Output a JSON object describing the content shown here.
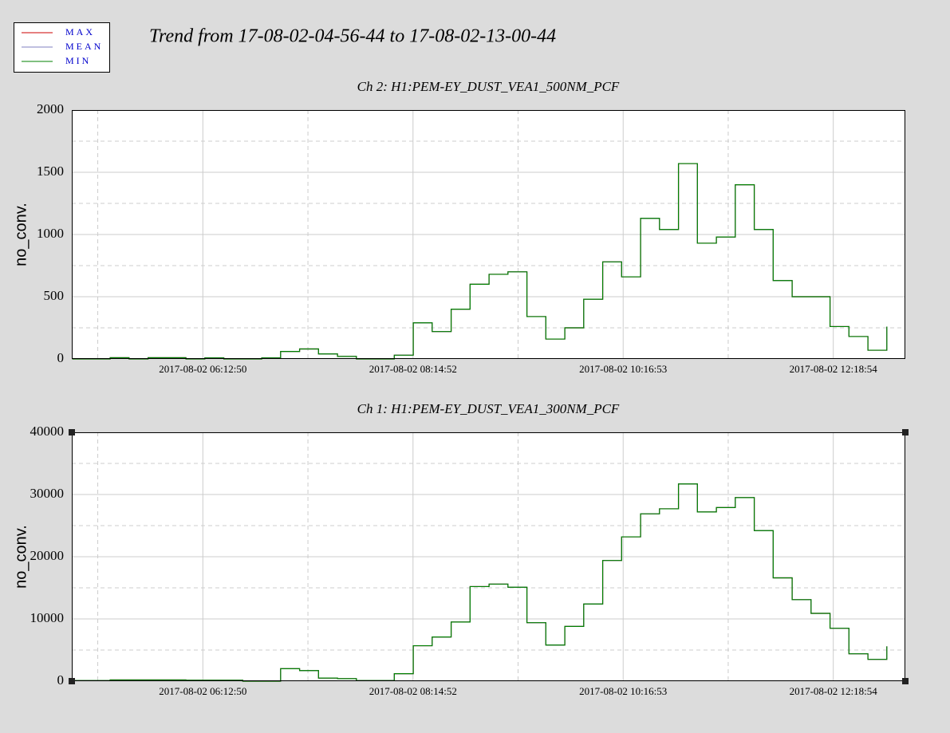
{
  "title": "Trend from 17-08-02-04-56-44 to 17-08-02-13-00-44",
  "chart_data": [
    {
      "type": "line",
      "step": true,
      "title": "Ch 2: H1:PEM-EY_DUST_VEA1_500NM_PCF",
      "y_label": "no_conv.",
      "xlim": [
        "2017-08-02 04:56:44",
        "2017-08-02 13:00:44"
      ],
      "xticks": [
        "2017-08-02 06:12:50",
        "2017-08-02 08:14:52",
        "2017-08-02 10:16:53",
        "2017-08-02 12:18:54"
      ],
      "minor_xticks": [
        "2017-08-02 05:11:49",
        "2017-08-02 07:13:51",
        "2017-08-02 09:15:52",
        "2017-08-02 11:17:53"
      ],
      "ylim": [
        0,
        2000
      ],
      "yticks": [
        0,
        500,
        1000,
        1500,
        2000
      ],
      "minor_yticks": [
        250,
        750,
        1250,
        1750
      ],
      "grid": true,
      "x": [
        "2017-08-02 04:57:00",
        "2017-08-02 05:08:00",
        "2017-08-02 05:19:00",
        "2017-08-02 05:30:00",
        "2017-08-02 05:41:00",
        "2017-08-02 05:52:00",
        "2017-08-02 06:03:00",
        "2017-08-02 06:14:00",
        "2017-08-02 06:25:00",
        "2017-08-02 06:36:00",
        "2017-08-02 06:47:00",
        "2017-08-02 06:58:00",
        "2017-08-02 07:09:00",
        "2017-08-02 07:20:00",
        "2017-08-02 07:31:00",
        "2017-08-02 07:42:00",
        "2017-08-02 07:53:00",
        "2017-08-02 08:04:00",
        "2017-08-02 08:15:00",
        "2017-08-02 08:26:00",
        "2017-08-02 08:37:00",
        "2017-08-02 08:48:00",
        "2017-08-02 08:59:00",
        "2017-08-02 09:10:00",
        "2017-08-02 09:21:00",
        "2017-08-02 09:32:00",
        "2017-08-02 09:43:00",
        "2017-08-02 09:54:00",
        "2017-08-02 10:05:00",
        "2017-08-02 10:16:00",
        "2017-08-02 10:27:00",
        "2017-08-02 10:38:00",
        "2017-08-02 10:49:00",
        "2017-08-02 11:00:00",
        "2017-08-02 11:11:00",
        "2017-08-02 11:22:00",
        "2017-08-02 11:33:00",
        "2017-08-02 11:44:00",
        "2017-08-02 11:55:00",
        "2017-08-02 12:06:00",
        "2017-08-02 12:17:00",
        "2017-08-02 12:28:00",
        "2017-08-02 12:39:00",
        "2017-08-02 12:50:00"
      ],
      "series": [
        {
          "name": "MAX",
          "color": "#cc0000",
          "values": [
            0,
            0,
            10,
            0,
            10,
            10,
            0,
            8,
            0,
            0,
            8,
            60,
            80,
            40,
            20,
            0,
            0,
            30,
            290,
            220,
            400,
            600,
            680,
            700,
            340,
            160,
            250,
            480,
            780,
            660,
            1130,
            1040,
            1570,
            930,
            980,
            1400,
            1040,
            630,
            500,
            500,
            260,
            180,
            70,
            260
          ]
        },
        {
          "name": "MEAN",
          "color": "#8080c0",
          "values": [
            0,
            0,
            10,
            0,
            10,
            10,
            0,
            8,
            0,
            0,
            8,
            60,
            80,
            40,
            20,
            0,
            0,
            30,
            290,
            220,
            400,
            600,
            680,
            700,
            340,
            160,
            250,
            480,
            780,
            660,
            1130,
            1040,
            1570,
            930,
            980,
            1400,
            1040,
            630,
            500,
            500,
            260,
            180,
            70,
            260
          ]
        },
        {
          "name": "MIN",
          "color": "#008000",
          "values": [
            0,
            0,
            10,
            0,
            10,
            10,
            0,
            8,
            0,
            0,
            8,
            60,
            80,
            40,
            20,
            0,
            0,
            30,
            290,
            220,
            400,
            600,
            680,
            700,
            340,
            160,
            250,
            480,
            780,
            660,
            1130,
            1040,
            1570,
            930,
            980,
            1400,
            1040,
            630,
            500,
            500,
            260,
            180,
            70,
            260
          ]
        }
      ]
    },
    {
      "type": "line",
      "step": true,
      "title": "Ch 1: H1:PEM-EY_DUST_VEA1_300NM_PCF",
      "y_label": "no_conv.",
      "xlim": [
        "2017-08-02 04:56:44",
        "2017-08-02 13:00:44"
      ],
      "xticks": [
        "2017-08-02 06:12:50",
        "2017-08-02 08:14:52",
        "2017-08-02 10:16:53",
        "2017-08-02 12:18:54"
      ],
      "minor_xticks": [
        "2017-08-02 05:11:49",
        "2017-08-02 07:13:51",
        "2017-08-02 09:15:52",
        "2017-08-02 11:17:53"
      ],
      "ylim": [
        0,
        40000
      ],
      "yticks": [
        0,
        10000,
        20000,
        30000,
        40000
      ],
      "minor_yticks": [
        5000,
        15000,
        25000,
        35000
      ],
      "grid": true,
      "x": [
        "2017-08-02 04:57:00",
        "2017-08-02 05:08:00",
        "2017-08-02 05:19:00",
        "2017-08-02 05:30:00",
        "2017-08-02 05:41:00",
        "2017-08-02 05:52:00",
        "2017-08-02 06:03:00",
        "2017-08-02 06:14:00",
        "2017-08-02 06:25:00",
        "2017-08-02 06:36:00",
        "2017-08-02 06:47:00",
        "2017-08-02 06:58:00",
        "2017-08-02 07:09:00",
        "2017-08-02 07:20:00",
        "2017-08-02 07:31:00",
        "2017-08-02 07:42:00",
        "2017-08-02 07:53:00",
        "2017-08-02 08:04:00",
        "2017-08-02 08:15:00",
        "2017-08-02 08:26:00",
        "2017-08-02 08:37:00",
        "2017-08-02 08:48:00",
        "2017-08-02 08:59:00",
        "2017-08-02 09:10:00",
        "2017-08-02 09:21:00",
        "2017-08-02 09:32:00",
        "2017-08-02 09:43:00",
        "2017-08-02 09:54:00",
        "2017-08-02 10:05:00",
        "2017-08-02 10:16:00",
        "2017-08-02 10:27:00",
        "2017-08-02 10:38:00",
        "2017-08-02 10:49:00",
        "2017-08-02 11:00:00",
        "2017-08-02 11:11:00",
        "2017-08-02 11:22:00",
        "2017-08-02 11:33:00",
        "2017-08-02 11:44:00",
        "2017-08-02 11:55:00",
        "2017-08-02 12:06:00",
        "2017-08-02 12:17:00",
        "2017-08-02 12:28:00",
        "2017-08-02 12:39:00",
        "2017-08-02 12:50:00"
      ],
      "series": [
        {
          "name": "MAX",
          "color": "#cc0000",
          "values": [
            100,
            100,
            200,
            200,
            200,
            200,
            150,
            150,
            150,
            0,
            0,
            2000,
            1700,
            500,
            400,
            100,
            100,
            1200,
            5700,
            7100,
            9500,
            15200,
            15600,
            15100,
            9400,
            5800,
            8800,
            12400,
            19400,
            23200,
            26900,
            27700,
            31700,
            27200,
            27900,
            29500,
            24200,
            16600,
            13100,
            10900,
            8500,
            4400,
            3500,
            5600
          ]
        },
        {
          "name": "MEAN",
          "color": "#8080c0",
          "values": [
            100,
            100,
            200,
            200,
            200,
            200,
            150,
            150,
            150,
            0,
            0,
            2000,
            1700,
            500,
            400,
            100,
            100,
            1200,
            5700,
            7100,
            9500,
            15200,
            15600,
            15100,
            9400,
            5800,
            8800,
            12400,
            19400,
            23200,
            26900,
            27700,
            31700,
            27200,
            27900,
            29500,
            24200,
            16600,
            13100,
            10900,
            8500,
            4400,
            3500,
            5600
          ]
        },
        {
          "name": "MIN",
          "color": "#008000",
          "values": [
            100,
            100,
            200,
            200,
            200,
            200,
            150,
            150,
            150,
            0,
            0,
            2000,
            1700,
            500,
            400,
            100,
            100,
            1200,
            5700,
            7100,
            9500,
            15200,
            15600,
            15100,
            9400,
            5800,
            8800,
            12400,
            19400,
            23200,
            26900,
            27700,
            31700,
            27200,
            27900,
            29500,
            24200,
            16600,
            13100,
            10900,
            8500,
            4400,
            3500,
            5600
          ]
        }
      ]
    }
  ]
}
